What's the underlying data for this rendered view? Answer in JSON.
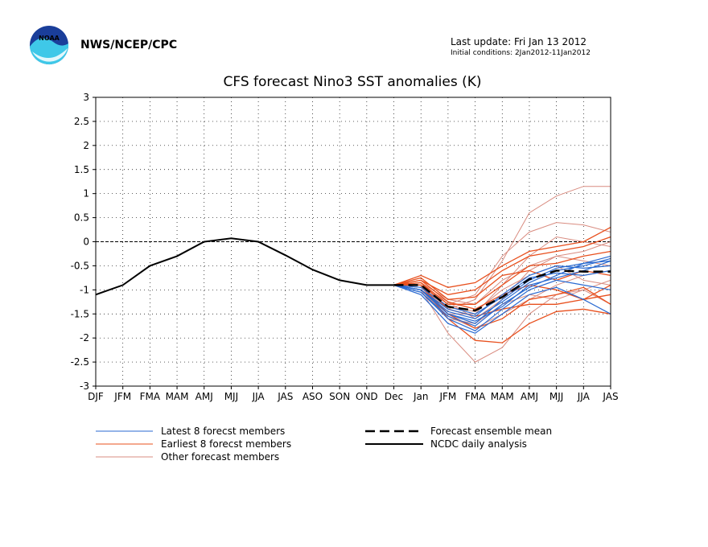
{
  "header": {
    "agency": "NWS/NCEP/CPC",
    "last_update": "Last update: Fri Jan 13 2012",
    "initial_conditions": "Initial conditions: 2Jan2012-11Jan2012",
    "logo_text": "NOAA"
  },
  "colors": {
    "title": "#ff0000",
    "latest": "#2a6ad1",
    "earliest": "#e8501e",
    "other": "#d98c80",
    "analysis": "#000000",
    "mean": "#000000",
    "grid": "#000000",
    "logo_blue": "#1a3e9a",
    "logo_cyan": "#3fc8e8"
  },
  "chart_data": {
    "type": "line",
    "title": "CFS forecast Nino3 SST anomalies (K)",
    "xlabel": "",
    "ylabel": "",
    "ylim": [
      -3,
      3
    ],
    "yticks": [
      "3",
      "2.5",
      "2",
      "1.5",
      "1",
      "0.5",
      "0",
      "-0.5",
      "-1",
      "-1.5",
      "-2",
      "-2.5",
      "-3"
    ],
    "yticks_values": [
      3,
      2.5,
      2,
      1.5,
      1,
      0.5,
      0,
      -0.5,
      -1,
      -1.5,
      -2,
      -2.5,
      -3
    ],
    "categories": [
      "DJF",
      "JFM",
      "FMA",
      "MAM",
      "AMJ",
      "MJJ",
      "JJA",
      "JAS",
      "ASO",
      "SON",
      "OND",
      "Dec",
      "Jan",
      "JFM",
      "FMA",
      "MAM",
      "AMJ",
      "MJJ",
      "JJA",
      "JAS"
    ],
    "grid": true,
    "zero_line": true,
    "legend": {
      "position": "bottom",
      "items": [
        {
          "label": "Latest 8 forecst members",
          "style": "latest"
        },
        {
          "label": "Earliest 8 forecst members",
          "style": "earliest"
        },
        {
          "label": "Other forecast members",
          "style": "other"
        },
        {
          "label": "Forecast ensemble mean",
          "style": "mean"
        },
        {
          "label": "NCDC daily analysis",
          "style": "analysis"
        }
      ]
    },
    "analysis": {
      "name": "NCDC daily analysis",
      "x": [
        0,
        1,
        2,
        3,
        4,
        5,
        6,
        7,
        8,
        9,
        10,
        11
      ],
      "values": [
        -1.1,
        -0.9,
        -0.5,
        -0.3,
        0.0,
        0.07,
        0.0,
        -0.28,
        -0.58,
        -0.8,
        -0.9,
        -0.9
      ]
    },
    "ensemble_mean": {
      "name": "Forecast ensemble mean",
      "x": [
        11,
        12,
        13,
        14,
        15,
        16,
        17,
        18,
        19
      ],
      "values": [
        -0.9,
        -0.9,
        -1.35,
        -1.43,
        -1.15,
        -0.78,
        -0.6,
        -0.62,
        -0.62
      ]
    },
    "member_groups": [
      {
        "name": "Latest 8 forecst members",
        "style": "latest",
        "x": [
          11,
          12,
          13,
          14,
          15,
          16,
          17,
          18,
          19
        ],
        "members": [
          [
            -0.9,
            -1.0,
            -1.5,
            -1.7,
            -1.2,
            -0.8,
            -0.55,
            -0.45,
            -0.4
          ],
          [
            -0.9,
            -1.05,
            -1.6,
            -1.85,
            -1.4,
            -1.0,
            -0.8,
            -0.9,
            -1.0
          ],
          [
            -0.9,
            -1.0,
            -1.45,
            -1.6,
            -1.25,
            -0.85,
            -0.6,
            -0.5,
            -0.35
          ],
          [
            -0.9,
            -0.95,
            -1.35,
            -1.5,
            -1.15,
            -0.75,
            -0.65,
            -0.7,
            -0.6
          ],
          [
            -0.9,
            -1.1,
            -1.7,
            -1.9,
            -1.5,
            -1.1,
            -0.95,
            -1.2,
            -1.5
          ],
          [
            -0.9,
            -1.05,
            -1.55,
            -1.75,
            -1.3,
            -0.95,
            -0.7,
            -0.45,
            -0.3
          ],
          [
            -0.9,
            -1.0,
            -1.4,
            -1.55,
            -1.1,
            -0.7,
            -0.5,
            -0.55,
            -0.5
          ],
          [
            -0.9,
            -1.0,
            -1.5,
            -1.65,
            -1.35,
            -0.9,
            -0.75,
            -0.6,
            -0.4
          ]
        ]
      },
      {
        "name": "Earliest 8 forecst members",
        "style": "earliest",
        "x": [
          11,
          12,
          13,
          14,
          15,
          16,
          17,
          18,
          19
        ],
        "members": [
          [
            -0.9,
            -0.7,
            -0.95,
            -0.85,
            -0.5,
            -0.2,
            -0.1,
            0.0,
            0.3
          ],
          [
            -0.9,
            -0.8,
            -1.1,
            -1.0,
            -0.6,
            -0.3,
            -0.2,
            -0.1,
            0.1
          ],
          [
            -0.9,
            -0.85,
            -1.3,
            -1.3,
            -0.9,
            -0.5,
            -0.45,
            -0.3,
            -0.2
          ],
          [
            -0.9,
            -0.9,
            -1.6,
            -2.05,
            -2.1,
            -1.7,
            -1.45,
            -1.4,
            -1.5
          ],
          [
            -0.9,
            -0.85,
            -1.4,
            -1.55,
            -1.4,
            -1.3,
            -1.3,
            -1.2,
            -0.9
          ],
          [
            -0.9,
            -0.9,
            -1.5,
            -1.8,
            -1.6,
            -1.2,
            -1.1,
            -0.95,
            -1.3
          ],
          [
            -0.9,
            -0.75,
            -1.2,
            -1.15,
            -0.7,
            -0.6,
            -0.8,
            -0.6,
            -0.7
          ],
          [
            -0.9,
            -0.8,
            -1.25,
            -1.4,
            -1.1,
            -0.9,
            -1.0,
            -1.2,
            -1.1
          ]
        ]
      },
      {
        "name": "Other forecast members",
        "style": "other",
        "x": [
          11,
          12,
          13,
          14,
          15,
          16,
          17,
          18,
          19
        ],
        "members": [
          [
            -0.9,
            -1.0,
            -1.9,
            -2.5,
            -2.2,
            -1.5,
            -1.1,
            -1.0,
            -1.3
          ],
          [
            -0.9,
            -0.95,
            -1.4,
            -1.2,
            -0.4,
            0.6,
            0.95,
            1.15,
            1.15
          ],
          [
            -0.9,
            -0.9,
            -1.3,
            -1.1,
            -0.3,
            0.2,
            0.4,
            0.35,
            0.2
          ],
          [
            -0.9,
            -0.95,
            -1.5,
            -1.5,
            -0.9,
            -0.3,
            0.1,
            0.0,
            -0.1
          ],
          [
            -0.9,
            -0.85,
            -1.2,
            -1.3,
            -0.8,
            -0.5,
            -0.3,
            -0.4,
            -0.5
          ],
          [
            -0.9,
            -0.9,
            -1.35,
            -1.45,
            -1.0,
            -0.7,
            -0.5,
            -0.8,
            -0.9
          ],
          [
            -0.9,
            -1.0,
            -1.6,
            -1.7,
            -1.3,
            -1.1,
            -1.2,
            -1.0,
            -0.8
          ],
          [
            -0.9,
            -0.9,
            -1.25,
            -1.6,
            -1.2,
            -0.6,
            -0.3,
            -0.2,
            0.0
          ],
          [
            -0.9,
            -1.0,
            -1.55,
            -1.8,
            -1.5,
            -1.2,
            -0.9,
            -0.7,
            -0.6
          ]
        ]
      }
    ]
  }
}
